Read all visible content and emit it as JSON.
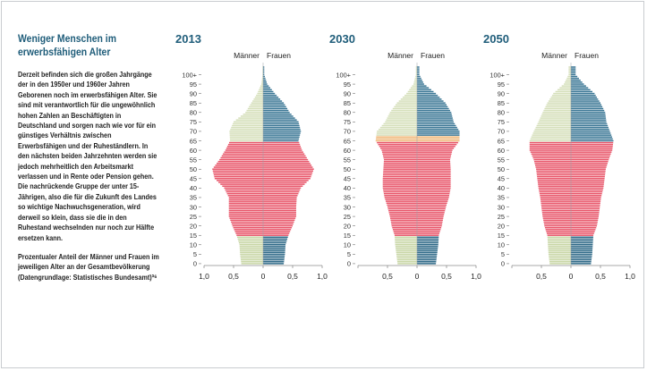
{
  "text": {
    "heading": "Weniger Menschen im erwerbsfähigen Alter",
    "body": "Derzeit befinden sich die großen Jahrgänge der in den 1950er und 1960er Jahren Geborenen noch im erwerbsfähigen Alter. Sie sind mit verantwortlich für die ungewöhnlich hohen Zahlen an Beschäftigten in Deutschland und sorgen nach wie vor für ein günstiges Verhältnis zwischen Erwerbsfähigen und der Ruheständlern. In den nächsten beiden Jahrzehnten werden sie jedoch mehrheitlich den Arbeitsmarkt verlassen und in Rente oder Pension gehen. Die nachrückende Gruppe der unter 15-Jährigen, also die für die Zukunft des Landes so wichtige Nachwuchsgeneration, wird derweil so klein, dass sie die in den Ruhestand wechselnden nur noch zur Hälfte ersetzen kann.",
    "caption": "Prozentualer Anteil der Männer und Frauen im jeweiligen Alter an der Gesamtbevölkerung (Datengrundlage: Statistisches Bundesamt)³⁶"
  },
  "colors": {
    "heading": "#1f5d7a",
    "young_male": "#c8d6a6",
    "young_female": "#2f6a88",
    "working": "#e8566a",
    "retired_male": "#d5dfba",
    "retired_female": "#3b7795",
    "highlight_2030": "#f0b779"
  },
  "chart_data": [
    {
      "type": "bar",
      "subtype": "population-pyramid",
      "title": "2013",
      "legend": [
        "Männer",
        "Frauen"
      ],
      "y_ticks": [
        "0",
        "5",
        "10",
        "15",
        "20",
        "25",
        "30",
        "35",
        "40",
        "45",
        "50",
        "55",
        "60",
        "65",
        "70",
        "75",
        "80",
        "85",
        "90",
        "95",
        "100+"
      ],
      "x_ticks": [
        "1,0",
        "0,5",
        "0",
        "0,5",
        "1,0"
      ],
      "xlim": [
        -1.0,
        1.0
      ],
      "age_groups": [
        "0",
        "5",
        "10",
        "15",
        "20",
        "25",
        "30",
        "35",
        "40",
        "45",
        "50",
        "55",
        "60",
        "65",
        "70",
        "75",
        "80",
        "85",
        "90",
        "95",
        "100+"
      ],
      "series": [
        {
          "name": "Männer",
          "values": [
            0.37,
            0.39,
            0.4,
            0.45,
            0.52,
            0.58,
            0.58,
            0.58,
            0.66,
            0.82,
            0.86,
            0.74,
            0.64,
            0.56,
            0.57,
            0.5,
            0.3,
            0.2,
            0.1,
            0.03,
            0.01
          ]
        },
        {
          "name": "Frauen",
          "values": [
            0.35,
            0.37,
            0.38,
            0.43,
            0.5,
            0.56,
            0.56,
            0.57,
            0.64,
            0.8,
            0.86,
            0.76,
            0.66,
            0.6,
            0.64,
            0.6,
            0.45,
            0.35,
            0.2,
            0.07,
            0.02
          ]
        }
      ]
    },
    {
      "type": "bar",
      "subtype": "population-pyramid",
      "title": "2030",
      "legend": [
        "Männer",
        "Frauen"
      ],
      "y_ticks": [
        "0",
        "5",
        "10",
        "15",
        "20",
        "25",
        "30",
        "35",
        "40",
        "45",
        "50",
        "55",
        "60",
        "65",
        "70",
        "75",
        "80",
        "85",
        "90",
        "95",
        "100+"
      ],
      "x_ticks": [
        "0,5",
        "0",
        "0,5",
        "1,0"
      ],
      "xlim": [
        -1.0,
        1.0
      ],
      "age_groups": [
        "0",
        "5",
        "10",
        "15",
        "20",
        "25",
        "30",
        "35",
        "40",
        "45",
        "50",
        "55",
        "60",
        "65",
        "70",
        "75",
        "80",
        "85",
        "90",
        "95",
        "100+"
      ],
      "series": [
        {
          "name": "Männer",
          "values": [
            0.33,
            0.35,
            0.37,
            0.38,
            0.43,
            0.46,
            0.5,
            0.55,
            0.58,
            0.58,
            0.57,
            0.56,
            0.6,
            0.7,
            0.68,
            0.54,
            0.46,
            0.34,
            0.18,
            0.06,
            0.02
          ]
        },
        {
          "name": "Frauen",
          "values": [
            0.32,
            0.34,
            0.36,
            0.37,
            0.42,
            0.45,
            0.49,
            0.54,
            0.57,
            0.57,
            0.57,
            0.56,
            0.6,
            0.72,
            0.72,
            0.62,
            0.58,
            0.48,
            0.32,
            0.12,
            0.04
          ]
        }
      ]
    },
    {
      "type": "bar",
      "subtype": "population-pyramid",
      "title": "2050",
      "legend": [
        "Männer",
        "Frauen"
      ],
      "y_ticks": [
        "0",
        "5",
        "10",
        "15",
        "20",
        "25",
        "30",
        "35",
        "40",
        "45",
        "50",
        "55",
        "60",
        "65",
        "70",
        "75",
        "80",
        "85",
        "90",
        "95",
        "100+"
      ],
      "x_ticks": [
        "0,5",
        "0",
        "0,5",
        "1,0"
      ],
      "xlim": [
        -1.0,
        1.0
      ],
      "age_groups": [
        "0",
        "5",
        "10",
        "15",
        "20",
        "25",
        "30",
        "35",
        "40",
        "45",
        "50",
        "55",
        "60",
        "65",
        "70",
        "75",
        "80",
        "85",
        "90",
        "95",
        "100+"
      ],
      "series": [
        {
          "name": "Männer",
          "values": [
            0.36,
            0.38,
            0.39,
            0.4,
            0.45,
            0.48,
            0.5,
            0.52,
            0.55,
            0.57,
            0.59,
            0.63,
            0.7,
            0.7,
            0.63,
            0.55,
            0.48,
            0.4,
            0.3,
            0.12,
            0.04
          ]
        },
        {
          "name": "Frauen",
          "values": [
            0.34,
            0.36,
            0.37,
            0.38,
            0.44,
            0.47,
            0.49,
            0.51,
            0.55,
            0.57,
            0.59,
            0.64,
            0.7,
            0.72,
            0.66,
            0.6,
            0.58,
            0.5,
            0.4,
            0.22,
            0.08
          ]
        }
      ]
    }
  ]
}
